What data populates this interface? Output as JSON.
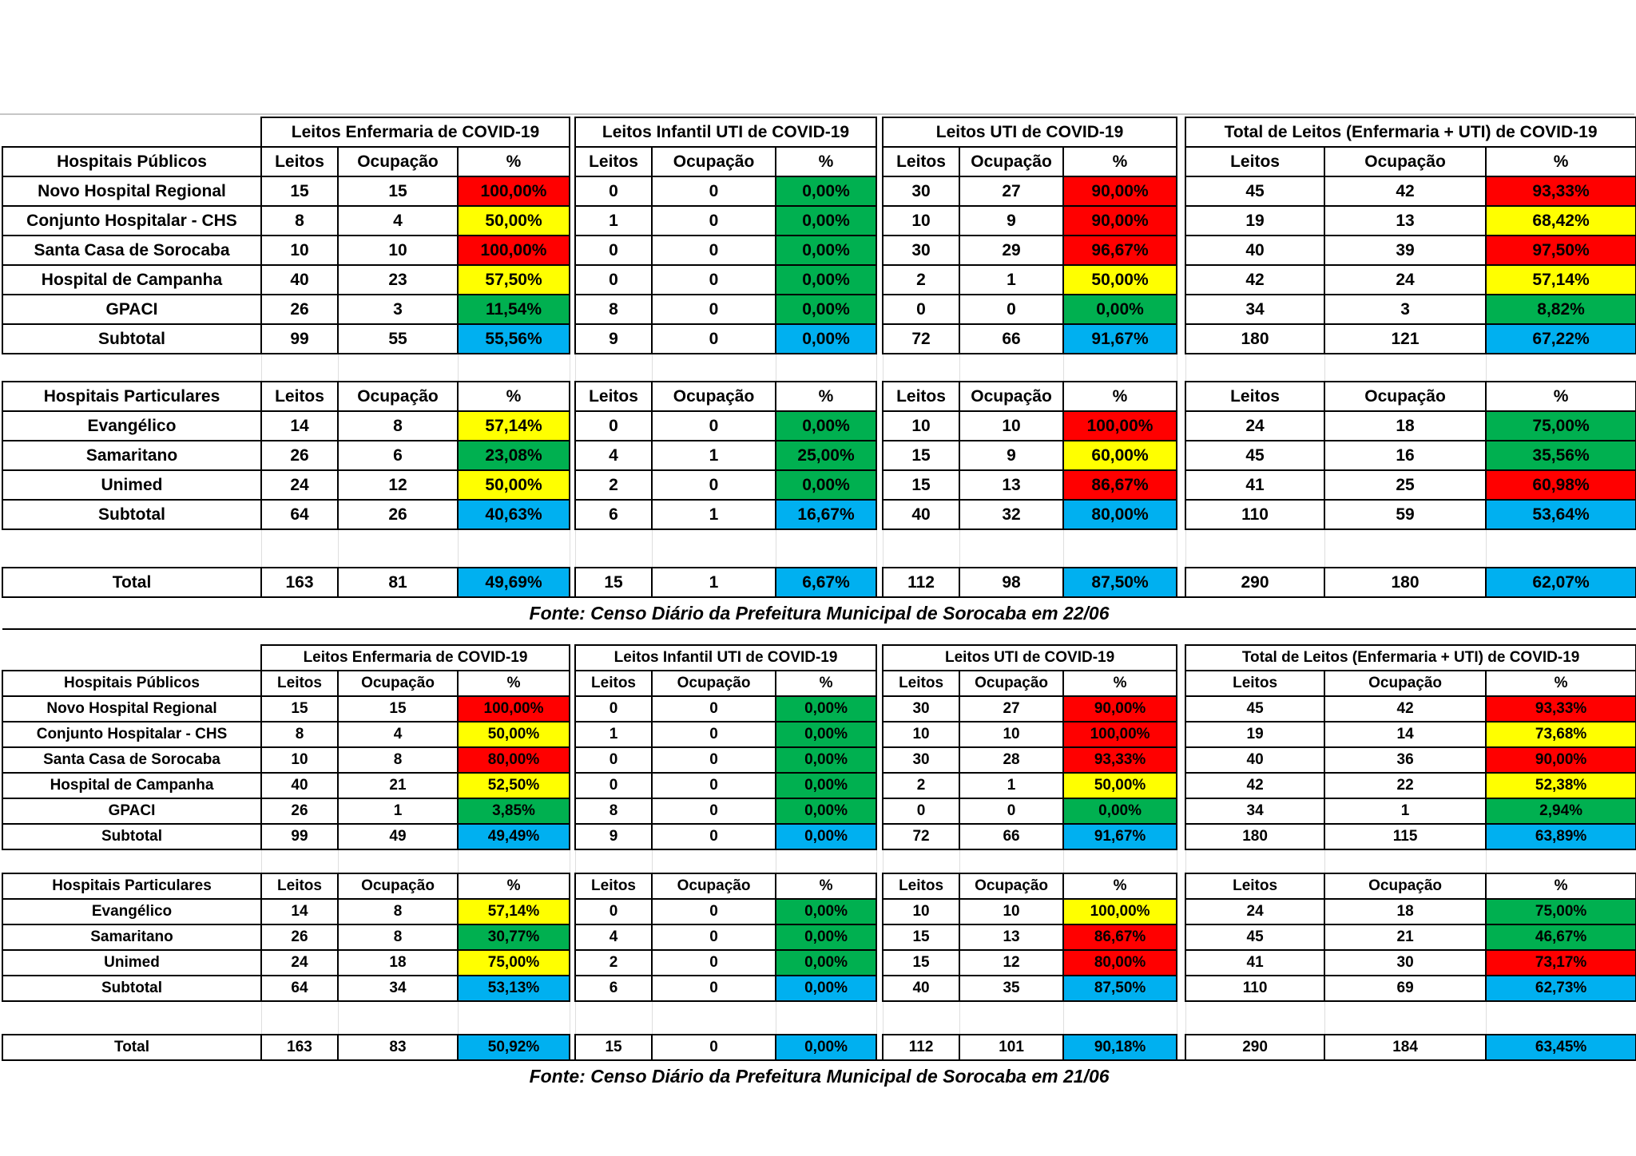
{
  "colors": {
    "high_occupancy": "#FF0000",
    "medium_occupancy": "#FFFF00",
    "low_occupancy": "#00B050",
    "subtotal": "#00B0F0"
  },
  "shared": {
    "group_headers": [
      "Leitos Enfermaria de COVID-19",
      "Leitos Infantil UTI de COVID-19",
      "Leitos UTI de COVID-19",
      "Total de Leitos (Enfermaria + UTI) de COVID-19"
    ],
    "sub_headers": [
      "Leitos",
      "Ocupação",
      "%"
    ]
  },
  "tables": [
    {
      "source_note": "Fonte: Censo Diário da Prefeitura Municipal de Sorocaba em 22/06",
      "sections": [
        {
          "header": "Hospitais Públicos",
          "rows": [
            {
              "name": "Novo Hospital Regional",
              "g": [
                [
                  15,
                  15,
                  "100,00%",
                  "red"
                ],
                [
                  0,
                  0,
                  "0,00%",
                  "green"
                ],
                [
                  30,
                  27,
                  "90,00%",
                  "red"
                ],
                [
                  45,
                  42,
                  "93,33%",
                  "red"
                ]
              ]
            },
            {
              "name": "Conjunto Hospitalar - CHS",
              "g": [
                [
                  8,
                  4,
                  "50,00%",
                  "yellow"
                ],
                [
                  1,
                  0,
                  "0,00%",
                  "green"
                ],
                [
                  10,
                  9,
                  "90,00%",
                  "red"
                ],
                [
                  19,
                  13,
                  "68,42%",
                  "yellow"
                ]
              ]
            },
            {
              "name": "Santa Casa de Sorocaba",
              "g": [
                [
                  10,
                  10,
                  "100,00%",
                  "red"
                ],
                [
                  0,
                  0,
                  "0,00%",
                  "green"
                ],
                [
                  30,
                  29,
                  "96,67%",
                  "red"
                ],
                [
                  40,
                  39,
                  "97,50%",
                  "red"
                ]
              ]
            },
            {
              "name": "Hospital de Campanha",
              "g": [
                [
                  40,
                  23,
                  "57,50%",
                  "yellow"
                ],
                [
                  0,
                  0,
                  "0,00%",
                  "green"
                ],
                [
                  2,
                  1,
                  "50,00%",
                  "yellow"
                ],
                [
                  42,
                  24,
                  "57,14%",
                  "yellow"
                ]
              ]
            },
            {
              "name": "GPACI",
              "g": [
                [
                  26,
                  3,
                  "11,54%",
                  "green"
                ],
                [
                  8,
                  0,
                  "0,00%",
                  "green"
                ],
                [
                  0,
                  0,
                  "0,00%",
                  "green"
                ],
                [
                  34,
                  3,
                  "8,82%",
                  "green"
                ]
              ]
            }
          ],
          "subtotal": {
            "name": "Subtotal",
            "g": [
              [
                99,
                55,
                "55,56%",
                "blue"
              ],
              [
                9,
                0,
                "0,00%",
                "blue"
              ],
              [
                72,
                66,
                "91,67%",
                "blue"
              ],
              [
                180,
                121,
                "67,22%",
                "blue"
              ]
            ]
          }
        },
        {
          "header": "Hospitais Particulares",
          "rows": [
            {
              "name": "Evangélico",
              "g": [
                [
                  14,
                  8,
                  "57,14%",
                  "yellow"
                ],
                [
                  0,
                  0,
                  "0,00%",
                  "green"
                ],
                [
                  10,
                  10,
                  "100,00%",
                  "red"
                ],
                [
                  24,
                  18,
                  "75,00%",
                  "green"
                ]
              ]
            },
            {
              "name": "Samaritano",
              "g": [
                [
                  26,
                  6,
                  "23,08%",
                  "green"
                ],
                [
                  4,
                  1,
                  "25,00%",
                  "green"
                ],
                [
                  15,
                  9,
                  "60,00%",
                  "yellow"
                ],
                [
                  45,
                  16,
                  "35,56%",
                  "green"
                ]
              ]
            },
            {
              "name": "Unimed",
              "g": [
                [
                  24,
                  12,
                  "50,00%",
                  "yellow"
                ],
                [
                  2,
                  0,
                  "0,00%",
                  "green"
                ],
                [
                  15,
                  13,
                  "86,67%",
                  "red"
                ],
                [
                  41,
                  25,
                  "60,98%",
                  "red"
                ]
              ]
            }
          ],
          "subtotal": {
            "name": "Subtotal",
            "g": [
              [
                64,
                26,
                "40,63%",
                "blue"
              ],
              [
                6,
                1,
                "16,67%",
                "blue"
              ],
              [
                40,
                32,
                "80,00%",
                "blue"
              ],
              [
                110,
                59,
                "53,64%",
                "blue"
              ]
            ]
          }
        }
      ],
      "total": {
        "name": "Total",
        "g": [
          [
            163,
            81,
            "49,69%",
            "blue"
          ],
          [
            15,
            1,
            "6,67%",
            "blue"
          ],
          [
            112,
            98,
            "87,50%",
            "blue"
          ],
          [
            290,
            180,
            "62,07%",
            "blue"
          ]
        ]
      }
    },
    {
      "source_note": "Fonte: Censo Diário da Prefeitura Municipal de Sorocaba em 21/06",
      "sections": [
        {
          "header": "Hospitais Públicos",
          "rows": [
            {
              "name": "Novo Hospital Regional",
              "g": [
                [
                  15,
                  15,
                  "100,00%",
                  "red"
                ],
                [
                  0,
                  0,
                  "0,00%",
                  "green"
                ],
                [
                  30,
                  27,
                  "90,00%",
                  "red"
                ],
                [
                  45,
                  42,
                  "93,33%",
                  "red"
                ]
              ]
            },
            {
              "name": "Conjunto Hospitalar - CHS",
              "g": [
                [
                  8,
                  4,
                  "50,00%",
                  "yellow"
                ],
                [
                  1,
                  0,
                  "0,00%",
                  "green"
                ],
                [
                  10,
                  10,
                  "100,00%",
                  "red"
                ],
                [
                  19,
                  14,
                  "73,68%",
                  "yellow"
                ]
              ]
            },
            {
              "name": "Santa Casa de Sorocaba",
              "g": [
                [
                  10,
                  8,
                  "80,00%",
                  "red"
                ],
                [
                  0,
                  0,
                  "0,00%",
                  "green"
                ],
                [
                  30,
                  28,
                  "93,33%",
                  "red"
                ],
                [
                  40,
                  36,
                  "90,00%",
                  "red"
                ]
              ]
            },
            {
              "name": "Hospital de Campanha",
              "g": [
                [
                  40,
                  21,
                  "52,50%",
                  "yellow"
                ],
                [
                  0,
                  0,
                  "0,00%",
                  "green"
                ],
                [
                  2,
                  1,
                  "50,00%",
                  "yellow"
                ],
                [
                  42,
                  22,
                  "52,38%",
                  "yellow"
                ]
              ]
            },
            {
              "name": "GPACI",
              "g": [
                [
                  26,
                  1,
                  "3,85%",
                  "green"
                ],
                [
                  8,
                  0,
                  "0,00%",
                  "green"
                ],
                [
                  0,
                  0,
                  "0,00%",
                  "green"
                ],
                [
                  34,
                  1,
                  "2,94%",
                  "green"
                ]
              ]
            }
          ],
          "subtotal": {
            "name": "Subtotal",
            "g": [
              [
                99,
                49,
                "49,49%",
                "blue"
              ],
              [
                9,
                0,
                "0,00%",
                "blue"
              ],
              [
                72,
                66,
                "91,67%",
                "blue"
              ],
              [
                180,
                115,
                "63,89%",
                "blue"
              ]
            ]
          }
        },
        {
          "header": "Hospitais Particulares",
          "rows": [
            {
              "name": "Evangélico",
              "g": [
                [
                  14,
                  8,
                  "57,14%",
                  "yellow"
                ],
                [
                  0,
                  0,
                  "0,00%",
                  "green"
                ],
                [
                  10,
                  10,
                  "100,00%",
                  "yellow"
                ],
                [
                  24,
                  18,
                  "75,00%",
                  "green"
                ]
              ]
            },
            {
              "name": "Samaritano",
              "g": [
                [
                  26,
                  8,
                  "30,77%",
                  "green"
                ],
                [
                  4,
                  0,
                  "0,00%",
                  "green"
                ],
                [
                  15,
                  13,
                  "86,67%",
                  "red"
                ],
                [
                  45,
                  21,
                  "46,67%",
                  "green"
                ]
              ]
            },
            {
              "name": "Unimed",
              "g": [
                [
                  24,
                  18,
                  "75,00%",
                  "yellow"
                ],
                [
                  2,
                  0,
                  "0,00%",
                  "green"
                ],
                [
                  15,
                  12,
                  "80,00%",
                  "red"
                ],
                [
                  41,
                  30,
                  "73,17%",
                  "red"
                ]
              ]
            }
          ],
          "subtotal": {
            "name": "Subtotal",
            "g": [
              [
                64,
                34,
                "53,13%",
                "blue"
              ],
              [
                6,
                0,
                "0,00%",
                "blue"
              ],
              [
                40,
                35,
                "87,50%",
                "blue"
              ],
              [
                110,
                69,
                "62,73%",
                "blue"
              ]
            ]
          }
        }
      ],
      "total": {
        "name": "Total",
        "g": [
          [
            163,
            83,
            "50,92%",
            "blue"
          ],
          [
            15,
            0,
            "0,00%",
            "blue"
          ],
          [
            112,
            101,
            "90,18%",
            "blue"
          ],
          [
            290,
            184,
            "63,45%",
            "blue"
          ]
        ]
      }
    }
  ]
}
